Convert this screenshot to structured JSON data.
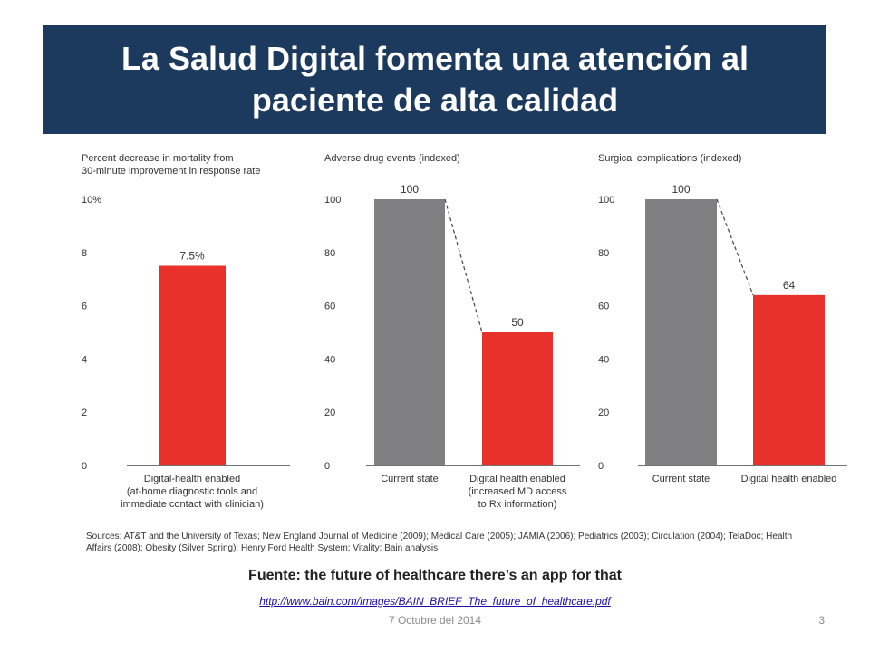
{
  "slide": {
    "title": "La Salud Digital fomenta una atención al paciente de alta calidad",
    "sources": "Sources: AT&T and the University of Texas; New England Journal of Medicine (2009); Medical Care (2005); JAMIA (2006); Pediatrics (2003); Circulation (2004); TelaDoc; Health Affairs (2008); Obesity (Silver Spring); Henry Ford Health System; Vitality; Bain analysis",
    "source_title": "Fuente: the future of healthcare there’s an app for that",
    "source_link": "http://www.bain.com/Images/BAIN_BRIEF_The_future_of_healthcare.pdf",
    "footer_date": "7 Octubre del 2014",
    "page_number": "3"
  },
  "colors": {
    "title_bg": "#1c3a5e",
    "gray_bar": "#808083",
    "red_bar": "#e8312a"
  },
  "chart_data": [
    {
      "type": "bar",
      "title_lines": [
        "Percent decrease in mortality from",
        "30-minute improvement in response rate"
      ],
      "ylim": [
        0,
        10
      ],
      "ticks": [
        "0",
        "2",
        "4",
        "6",
        "8",
        "10%"
      ],
      "categories": [
        {
          "label_lines": [
            "Digital-health enabled",
            "(at-home diagnostic tools and",
            "immediate contact with clinician)"
          ]
        }
      ],
      "values": [
        7.5
      ],
      "value_labels": [
        "7.5%"
      ],
      "bar_colors": [
        "red"
      ],
      "connector": false
    },
    {
      "type": "bar",
      "title_lines": [
        "Adverse drug events (indexed)"
      ],
      "ylim": [
        0,
        100
      ],
      "ticks": [
        "0",
        "20",
        "40",
        "60",
        "80",
        "100"
      ],
      "categories": [
        {
          "label_lines": [
            "Current state"
          ]
        },
        {
          "label_lines": [
            "Digital health enabled",
            "(increased MD access",
            "to Rx information)"
          ]
        }
      ],
      "values": [
        100,
        50
      ],
      "value_labels": [
        "100",
        "50"
      ],
      "bar_colors": [
        "gray",
        "red"
      ],
      "connector": true
    },
    {
      "type": "bar",
      "title_lines": [
        "Surgical complications (indexed)"
      ],
      "ylim": [
        0,
        100
      ],
      "ticks": [
        "0",
        "20",
        "40",
        "60",
        "80",
        "100"
      ],
      "categories": [
        {
          "label_lines": [
            "Current state"
          ]
        },
        {
          "label_lines": [
            "Digital health enabled"
          ]
        }
      ],
      "values": [
        100,
        64
      ],
      "value_labels": [
        "100",
        "64"
      ],
      "bar_colors": [
        "gray",
        "red"
      ],
      "connector": true
    }
  ]
}
